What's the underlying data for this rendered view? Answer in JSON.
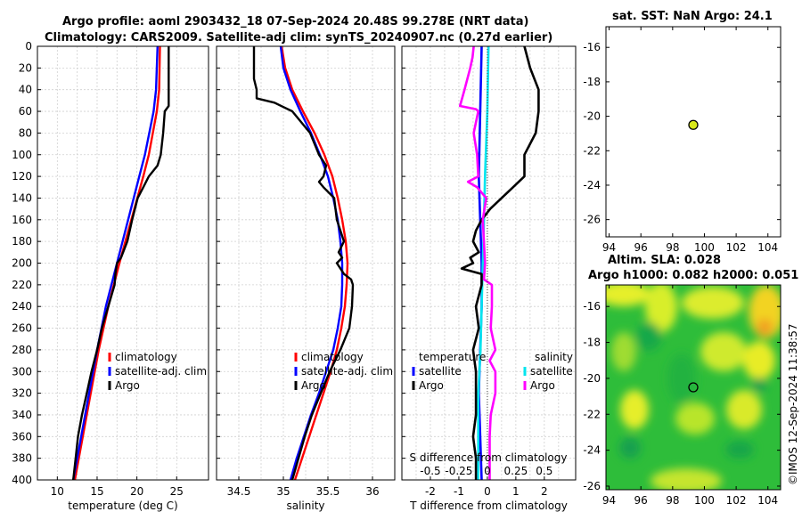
{
  "title": {
    "line1": "Argo profile: aoml 2903432_18 07-Sep-2024 20.48S 99.278E (NRT data)",
    "line2": "Climatology: CARS2009. Satellite-adj clim: synTS_20240907.nc (0.27d earlier)"
  },
  "colors": {
    "climatology": "#ff0000",
    "satellite": "#0000ff",
    "argo": "#000000",
    "sat_salinity": "#00e5ee",
    "argo_salinity": "#ff00ff"
  },
  "depth_ticks": [
    "0",
    "20",
    "40",
    "60",
    "80",
    "100",
    "120",
    "140",
    "160",
    "180",
    "200",
    "220",
    "240",
    "260",
    "280",
    "300",
    "320",
    "340",
    "360",
    "380",
    "400"
  ],
  "temp_legend": [
    "climatology",
    "satellite-adj. clim",
    "Argo"
  ],
  "sal_legend": [
    "climatology",
    "satellite-adj. clim",
    "Argo"
  ],
  "diff_legend": {
    "temp_header": "temperature",
    "sal_header": "salinity",
    "temp_items": [
      "satellite",
      "Argo"
    ],
    "sal_items": [
      "satellite",
      "Argo"
    ]
  },
  "sst_panel": {
    "title": "sat. SST: NaN Argo: 24.1"
  },
  "sla_panel": {
    "title1": "Altim. SLA: 0.028",
    "title2": "Argo h1000: 0.082 h2000: 0.051"
  },
  "map_x_ticks": [
    "94",
    "96",
    "98",
    "100",
    "102",
    "104"
  ],
  "map_y_ticks": [
    "-16",
    "-18",
    "-20",
    "-22",
    "-24",
    "-26"
  ],
  "credit": "©IMOS 12-Sep-2024 11:38:57",
  "chart_data": [
    {
      "type": "line",
      "id": "temperature",
      "xlabel": "temperature (deg C)",
      "ylabel": "depth",
      "xlim": [
        7.5,
        29
      ],
      "ylim": [
        400,
        0
      ],
      "x_ticks": [
        "10",
        "15",
        "20",
        "25"
      ],
      "series": [
        {
          "name": "climatology",
          "depth": [
            0,
            40,
            60,
            100,
            120,
            160,
            200,
            240,
            280,
            320,
            360,
            400
          ],
          "values": [
            22.9,
            22.8,
            22.5,
            21.5,
            20.8,
            19.3,
            17.8,
            16.4,
            15.2,
            14.2,
            13.2,
            12.2
          ]
        },
        {
          "name": "satellite-adj. clim",
          "depth": [
            0,
            40,
            60,
            100,
            120,
            160,
            200,
            240,
            280,
            320,
            360,
            400
          ],
          "values": [
            22.6,
            22.4,
            22.1,
            21.0,
            20.3,
            18.9,
            17.5,
            16.1,
            15.0,
            14.0,
            13.0,
            12.0
          ]
        },
        {
          "name": "Argo",
          "depth": [
            0,
            20,
            40,
            55,
            60,
            80,
            100,
            110,
            120,
            130,
            140,
            160,
            180,
            195,
            200,
            210,
            220,
            240,
            260,
            280,
            300,
            320,
            340,
            360,
            380,
            400
          ],
          "values": [
            24.0,
            24.0,
            24.0,
            24.0,
            23.5,
            23.3,
            23.0,
            22.6,
            21.5,
            20.8,
            20.1,
            19.4,
            18.8,
            18.0,
            17.5,
            17.3,
            17.2,
            16.4,
            15.6,
            15.0,
            14.3,
            13.7,
            13.1,
            12.6,
            12.3,
            12.0
          ]
        }
      ]
    },
    {
      "type": "line",
      "id": "salinity",
      "xlabel": "salinity",
      "ylabel": "depth",
      "xlim": [
        34.25,
        36.25
      ],
      "ylim": [
        400,
        0
      ],
      "x_ticks": [
        "34.5",
        "35",
        "35.5",
        "36"
      ],
      "series": [
        {
          "name": "climatology",
          "depth": [
            0,
            20,
            40,
            60,
            80,
            100,
            120,
            140,
            160,
            180,
            200,
            220,
            240,
            260,
            280,
            300,
            320,
            340,
            360,
            380,
            400
          ],
          "values": [
            34.98,
            35.02,
            35.1,
            35.22,
            35.35,
            35.46,
            35.55,
            35.61,
            35.66,
            35.7,
            35.72,
            35.71,
            35.69,
            35.65,
            35.6,
            35.53,
            35.45,
            35.37,
            35.29,
            35.21,
            35.13
          ]
        },
        {
          "name": "satellite-adj. clim",
          "depth": [
            0,
            20,
            40,
            60,
            80,
            100,
            120,
            140,
            160,
            180,
            200,
            220,
            240,
            260,
            280,
            300,
            320,
            340,
            360,
            380,
            400
          ],
          "values": [
            34.97,
            35.0,
            35.08,
            35.19,
            35.31,
            35.41,
            35.5,
            35.56,
            35.61,
            35.64,
            35.66,
            35.66,
            35.65,
            35.61,
            35.56,
            35.48,
            35.4,
            35.31,
            35.23,
            35.15,
            35.08
          ]
        },
        {
          "name": "Argo",
          "depth": [
            0,
            30,
            40,
            48,
            52,
            56,
            60,
            80,
            100,
            110,
            120,
            125,
            130,
            140,
            160,
            180,
            190,
            195,
            200,
            210,
            215,
            220,
            240,
            260,
            280,
            300,
            320,
            340,
            360,
            380,
            400
          ],
          "values": [
            34.67,
            34.67,
            34.7,
            34.7,
            34.9,
            35.0,
            35.1,
            35.3,
            35.4,
            35.48,
            35.45,
            35.4,
            35.45,
            35.57,
            35.6,
            35.68,
            35.62,
            35.66,
            35.6,
            35.68,
            35.76,
            35.78,
            35.77,
            35.74,
            35.64,
            35.52,
            35.42,
            35.32,
            35.24,
            35.17,
            35.1
          ]
        }
      ]
    },
    {
      "type": "line",
      "id": "differences",
      "xlabel": "T difference from climatology",
      "ylabel": "depth",
      "xlim": [
        -3,
        3.1
      ],
      "ylim": [
        400,
        0
      ],
      "x_ticks": [
        "-2",
        "-1",
        "0",
        "1",
        "2"
      ],
      "top_label": "S difference from climatology",
      "top_ticks": [
        "-0.5",
        "-0.25",
        "0",
        "0.25",
        "0.5"
      ],
      "series": [
        {
          "name": "temperature satellite",
          "depth": [
            0,
            60,
            120,
            160,
            200,
            240,
            280,
            320,
            360,
            400
          ],
          "values": [
            -0.2,
            -0.25,
            -0.3,
            -0.25,
            -0.2,
            -0.2,
            -0.25,
            -0.3,
            -0.25,
            -0.2
          ]
        },
        {
          "name": "salinity satellite",
          "depth": [
            0,
            60,
            120,
            160,
            200,
            240,
            280,
            320,
            360,
            400
          ],
          "values": [
            0.01,
            0.0,
            -0.02,
            -0.03,
            -0.04,
            -0.05,
            -0.06,
            -0.08,
            -0.08,
            -0.08
          ]
        },
        {
          "name": "temperature Argo",
          "depth": [
            0,
            20,
            40,
            60,
            80,
            100,
            120,
            130,
            140,
            150,
            160,
            170,
            180,
            190,
            195,
            200,
            205,
            210,
            220,
            240,
            260,
            280,
            300,
            320,
            340,
            360,
            380,
            400
          ],
          "values": [
            1.3,
            1.5,
            1.8,
            1.8,
            1.7,
            1.3,
            1.3,
            0.9,
            0.5,
            0.1,
            -0.2,
            -0.4,
            -0.5,
            -0.3,
            -0.6,
            -0.5,
            -0.9,
            -0.2,
            -0.2,
            -0.4,
            -0.3,
            -0.5,
            -0.4,
            -0.4,
            -0.4,
            -0.5,
            -0.4,
            -0.4
          ]
        },
        {
          "name": "salinity Argo",
          "depth": [
            0,
            10,
            20,
            40,
            55,
            58,
            60,
            80,
            100,
            120,
            125,
            130,
            140,
            160,
            200,
            215,
            220,
            240,
            260,
            280,
            290,
            300,
            320,
            340,
            360,
            380,
            400
          ],
          "values": [
            -0.12,
            -0.13,
            -0.15,
            -0.2,
            -0.24,
            -0.1,
            -0.08,
            -0.12,
            -0.09,
            -0.08,
            -0.17,
            -0.09,
            -0.01,
            -0.04,
            -0.02,
            -0.03,
            0.04,
            0.04,
            0.03,
            0.07,
            0.02,
            0.07,
            0.07,
            0.03,
            0.02,
            0.02,
            0.02
          ]
        }
      ]
    },
    {
      "type": "scatter",
      "id": "sst_map",
      "xlim": [
        93.8,
        104.8
      ],
      "ylim": [
        -27,
        -14.8
      ],
      "points": [
        {
          "x": 99.3,
          "y": -20.5
        }
      ]
    },
    {
      "type": "heatmap",
      "id": "sla_map",
      "xlim": [
        93.8,
        104.8
      ],
      "ylim": [
        -26.2,
        -14.8
      ],
      "points": [
        {
          "x": 99.3,
          "y": -20.5
        }
      ]
    }
  ]
}
